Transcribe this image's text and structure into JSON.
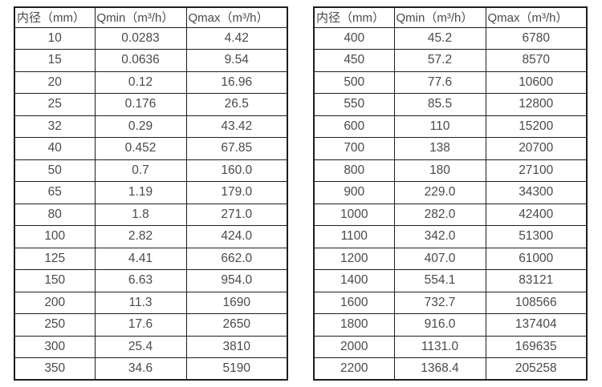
{
  "colors": {
    "background": "#ffffff",
    "border": "#1e1e1e",
    "text": "#4a4a4a"
  },
  "tables": [
    {
      "name": "small-diameters",
      "headers": [
        "内径（mm）",
        "Qmin（m³/h）",
        "Qmax（m³/h）"
      ],
      "rows": [
        [
          "10",
          "0.0283",
          "4.42"
        ],
        [
          "15",
          "0.0636",
          "9.54"
        ],
        [
          "20",
          "0.12",
          "16.96"
        ],
        [
          "25",
          "0.176",
          "26.5"
        ],
        [
          "32",
          "0.29",
          "43.42"
        ],
        [
          "40",
          "0.452",
          "67.85"
        ],
        [
          "50",
          "0.7",
          "160.0"
        ],
        [
          "65",
          "1.19",
          "179.0"
        ],
        [
          "80",
          "1.8",
          "271.0"
        ],
        [
          "100",
          "2.82",
          "424.0"
        ],
        [
          "125",
          "4.41",
          "662.0"
        ],
        [
          "150",
          "6.63",
          "954.0"
        ],
        [
          "200",
          "11.3",
          "1690"
        ],
        [
          "250",
          "17.6",
          "2650"
        ],
        [
          "300",
          "25.4",
          "3810"
        ],
        [
          "350",
          "34.6",
          "5190"
        ]
      ]
    },
    {
      "name": "large-diameters",
      "headers": [
        "内径（mm）",
        "Qmin（m³/h）",
        "Qmax（m³/h）"
      ],
      "rows": [
        [
          "400",
          "45.2",
          "6780"
        ],
        [
          "450",
          "57.2",
          "8570"
        ],
        [
          "500",
          "77.6",
          "10600"
        ],
        [
          "550",
          "85.5",
          "12800"
        ],
        [
          "600",
          "110",
          "15200"
        ],
        [
          "700",
          "138",
          "20700"
        ],
        [
          "800",
          "180",
          "27100"
        ],
        [
          "900",
          "229.0",
          "34300"
        ],
        [
          "1000",
          "282.0",
          "42400"
        ],
        [
          "1100",
          "342.0",
          "51300"
        ],
        [
          "1200",
          "407.0",
          "61000"
        ],
        [
          "1400",
          "554.1",
          "83121"
        ],
        [
          "1600",
          "732.7",
          "108566"
        ],
        [
          "1800",
          "916.0",
          "137404"
        ],
        [
          "2000",
          "1131.0",
          "169635"
        ],
        [
          "2200",
          "1368.4",
          "205258"
        ]
      ]
    }
  ]
}
